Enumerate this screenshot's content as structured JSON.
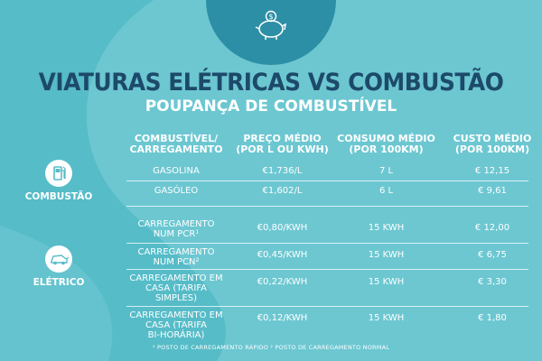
{
  "title": "VIATURAS ELÉTRICAS VS COMBUSTÃO",
  "subtitle": "POUPANÇA DE COMBUSTÍVEL",
  "colors": {
    "background": "#56bcc8",
    "title": "#1d4a6a",
    "swirl": "#7fd0d9",
    "dark_circle": "#2d8fa6"
  },
  "icons": {
    "top": "piggy-bank-icon",
    "combustion": "fuel-pump-icon",
    "electric": "electric-car-icon"
  },
  "headers": {
    "col1": [
      "COMBUSTÍVEL/",
      "CARREGAMENTO"
    ],
    "col2": [
      "PREÇO MÉDIO",
      "(POR L OU KWH)"
    ],
    "col3": [
      "CONSUMO MÉDIO",
      "(POR 100KM)"
    ],
    "col4": [
      "CUSTO MÉDIO",
      "(POR 100KM)"
    ]
  },
  "categories": {
    "combustion": "COMBUSTÃO",
    "electric": "ELÉTRICO"
  },
  "rows": [
    {
      "fuel": [
        "GASOLINA"
      ],
      "price": "€1,736/L",
      "consumption": "7 L",
      "cost": "€ 12,15"
    },
    {
      "fuel": [
        "GASÓLEO"
      ],
      "price": "€1,602/L",
      "consumption": "6 L",
      "cost": "€ 9,61"
    },
    {
      "fuel": [
        "CARREGAMENTO",
        "NUM PCR¹"
      ],
      "price": "€0,80/KWH",
      "consumption": "15 KWH",
      "cost": "€ 12,00"
    },
    {
      "fuel": [
        "CARREGAMENTO",
        "NUM PCN²"
      ],
      "price": "€0,45/KWH",
      "consumption": "15 KWH",
      "cost": "€ 6,75"
    },
    {
      "fuel": [
        "CARREGAMENTO EM",
        "CASA (TARIFA",
        "SIMPLES)"
      ],
      "price": "€0,22/KWH",
      "consumption": "15 KWH",
      "cost": "€ 3,30"
    },
    {
      "fuel": [
        "CARREGAMENTO EM",
        "CASA (TARIFA",
        "BI-HORÁRIA)"
      ],
      "price": "€0,12/KWH",
      "consumption": "15 KWH",
      "cost": "€ 1,80"
    }
  ],
  "footnote": "¹ POSTO DE CARREGAMENTO RÁPIDO  ² POSTO DE CARREGAMENTO NORMAL"
}
